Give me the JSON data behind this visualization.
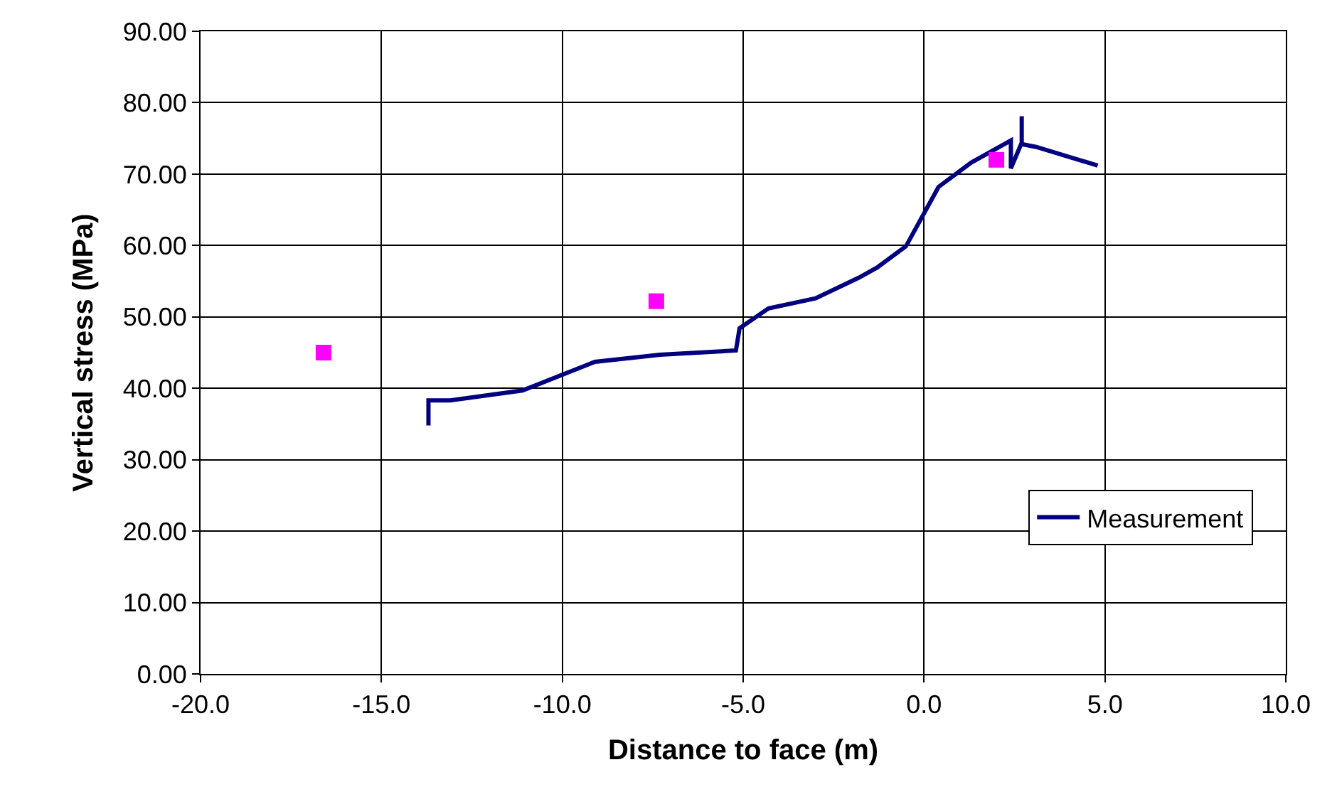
{
  "chart_data": {
    "type": "line",
    "xlabel": "Distance to face (m)",
    "ylabel": "Vertical stress (MPa)",
    "xlim": [
      -20,
      10
    ],
    "xticks": [
      {
        "value": -20,
        "label": "-20.0"
      },
      {
        "value": -15,
        "label": "-15.0"
      },
      {
        "value": -10,
        "label": "-10.0"
      },
      {
        "value": -5,
        "label": "-5.0"
      },
      {
        "value": 0,
        "label": "0.0"
      },
      {
        "value": 5,
        "label": "5.0"
      },
      {
        "value": 10,
        "label": "10.0"
      }
    ],
    "ylim": [
      0,
      90
    ],
    "yticks": [
      {
        "value": 0,
        "label": "0.00"
      },
      {
        "value": 10,
        "label": "10.00"
      },
      {
        "value": 20,
        "label": "20.00"
      },
      {
        "value": 30,
        "label": "30.00"
      },
      {
        "value": 40,
        "label": "40.00"
      },
      {
        "value": 50,
        "label": "50.00"
      },
      {
        "value": 60,
        "label": "60.00"
      },
      {
        "value": 70,
        "label": "70.00"
      },
      {
        "value": 80,
        "label": "80.00"
      },
      {
        "value": 90,
        "label": "90.00"
      }
    ],
    "grid": true,
    "legend": "bottom right",
    "series": [
      {
        "name": "Measurement",
        "color": "#000080",
        "marker": "none",
        "line_style": "solid",
        "x": [
          -13.7,
          -13.7,
          -13.1,
          -11.1,
          -9.1,
          -7.3,
          -5.2,
          -5.1,
          -4.3,
          -3.0,
          -1.8,
          -1.3,
          -0.5,
          0.4,
          1.3,
          2.4,
          2.4,
          2.7,
          2.7,
          2.7,
          3.1,
          4.8
        ],
        "values": [
          34.8,
          38.3,
          38.3,
          39.7,
          43.7,
          44.7,
          45.3,
          48.4,
          51.2,
          52.6,
          55.5,
          56.9,
          59.9,
          68.2,
          71.6,
          74.7,
          70.8,
          74.4,
          78.1,
          74.2,
          73.8,
          71.2
        ]
      },
      {
        "type": "scatter",
        "color": "#ff00ff",
        "marker": "square",
        "x": [
          -16.6,
          -7.4,
          2.0
        ],
        "values": [
          45.0,
          52.2,
          72.0
        ]
      }
    ]
  }
}
